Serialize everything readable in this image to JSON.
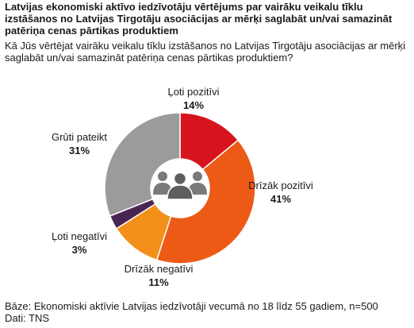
{
  "header": {
    "title": "Latvijas ekonomiski aktīvo iedzīvotāju vērtējums par vairāku veikalu tīklu izstāšanos no Latvijas Tirgotāju asociācijas ar mērķi saglabāt un/vai samazināt patēriņa cenas pārtikas produktiem",
    "question": "Kā Jūs vērtējat vairāku veikalu tīklu izstāšanos no Latvijas Tirgotāju asociācijas ar mērķi saglabāt un/vai samazināt patēriņa cenas pārtikas produktiem?"
  },
  "chart_data": {
    "type": "pie",
    "title": "",
    "categories": [
      "Ļoti pozitīvi",
      "Drīzāk pozitīvi",
      "Drīzāk negatīvi",
      "Ļoti negatīvi",
      "Grūti pateikt"
    ],
    "values": [
      14,
      41,
      11,
      3,
      31
    ],
    "labels": [
      "14%",
      "41%",
      "11%",
      "3%",
      "31%"
    ],
    "colors": [
      "#d7141e",
      "#ec5a16",
      "#f39019",
      "#4a2551",
      "#9b9b9b"
    ],
    "center_icon": "people-group-icon",
    "legend": "none"
  },
  "footer": {
    "base": "Bāze: Ekonomiski aktīvie Latvijas iedzīvotāji vecumā no 18 līdz 55 gadiem, n=500",
    "source": "Dati: TNS"
  }
}
